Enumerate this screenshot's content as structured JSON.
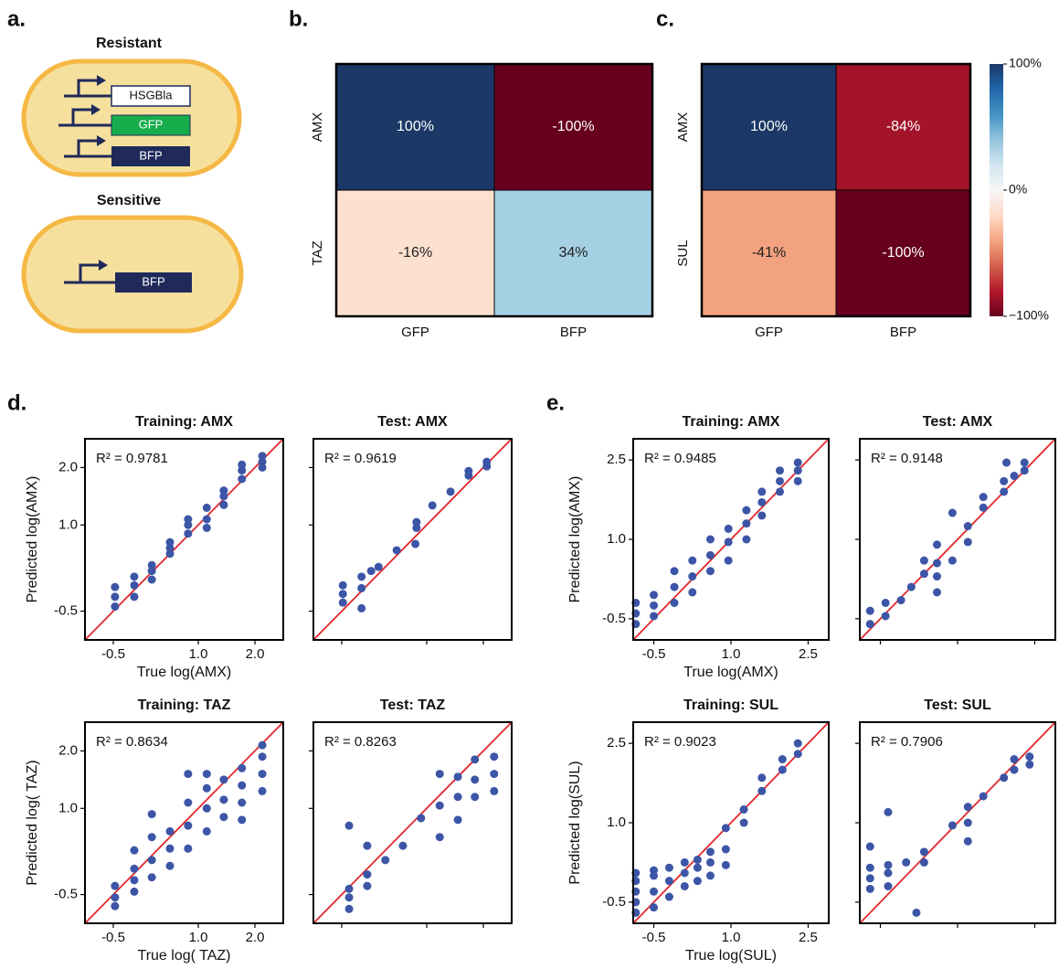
{
  "panel_labels": [
    "a.",
    "b.",
    "c.",
    "d.",
    "e."
  ],
  "diagram": {
    "groups": [
      {
        "label": "Resistant",
        "genes": [
          "HSGBla",
          "GFP",
          "BFP"
        ]
      },
      {
        "label": "Sensitive",
        "genes": [
          "BFP"
        ]
      }
    ]
  },
  "chart_data": [
    {
      "type": "heatmap",
      "rows": [
        "AMX",
        "TAZ"
      ],
      "columns": [
        "GFP",
        "BFP"
      ],
      "values": [
        [
          100,
          -100
        ],
        [
          -16,
          34
        ]
      ],
      "value_labels": [
        [
          "100%",
          "-100%"
        ],
        [
          "-16%",
          "34%"
        ]
      ],
      "colormap": "RdBu",
      "zlim": [
        -100,
        100
      ]
    },
    {
      "type": "heatmap",
      "rows": [
        "AMX",
        "SUL"
      ],
      "columns": [
        "GFP",
        "BFP"
      ],
      "values": [
        [
          100,
          -84
        ],
        [
          -41,
          -100
        ]
      ],
      "value_labels": [
        [
          "100%",
          "-84%"
        ],
        [
          "-41%",
          "-100%"
        ]
      ],
      "colormap": "RdBu",
      "zlim": [
        -100,
        100
      ],
      "colorbar_ticks": [
        {
          "value": 100,
          "label": "100%"
        },
        {
          "value": 0,
          "label": "0%"
        },
        {
          "value": -100,
          "label": "−100%"
        }
      ]
    },
    {
      "type": "scatter",
      "title": "Training: AMX",
      "annotation": "R² = 0.9781",
      "x_label": "True log(AMX)",
      "y_label": "Predicted log(AMX)",
      "x": [
        -0.47,
        -0.47,
        -0.47,
        -0.13,
        -0.13,
        -0.13,
        0.18,
        0.18,
        0.18,
        0.5,
        0.5,
        0.5,
        0.82,
        0.82,
        0.82,
        1.15,
        1.15,
        1.15,
        1.45,
        1.45,
        1.45,
        1.77,
        1.77,
        1.77,
        2.13,
        2.13,
        2.13
      ],
      "y": [
        -0.42,
        -0.25,
        -0.08,
        -0.25,
        -0.05,
        0.1,
        0.05,
        0.2,
        0.3,
        0.5,
        0.6,
        0.7,
        0.85,
        1.0,
        1.1,
        0.95,
        1.1,
        1.3,
        1.35,
        1.5,
        1.6,
        1.8,
        1.95,
        2.05,
        2.0,
        2.1,
        2.2
      ],
      "color": "#3c55a6",
      "line_color": "#e3262a",
      "xlim": [
        -1,
        2.5
      ],
      "ylim": [
        -1,
        2.5
      ],
      "xticks": [
        -0.5,
        {
          "value": 1,
          "label": "1.0"
        },
        {
          "value": 2,
          "label": "2.0"
        }
      ],
      "yticks": [
        -0.5,
        {
          "value": 1,
          "label": "1.0"
        },
        {
          "value": 2,
          "label": "2.0"
        }
      ]
    },
    {
      "type": "scatter",
      "title": "Test: AMX",
      "annotation": "R² = 0.9619",
      "x": [
        -0.48,
        -0.48,
        -0.48,
        -0.15,
        -0.15,
        -0.15,
        0.02,
        0.15,
        0.47,
        0.8,
        0.82,
        0.82,
        1.1,
        1.42,
        1.74,
        1.74,
        2.06,
        2.06
      ],
      "y": [
        -0.35,
        -0.2,
        -0.05,
        -0.45,
        -0.1,
        0.1,
        0.2,
        0.27,
        0.56,
        0.67,
        0.95,
        1.05,
        1.34,
        1.58,
        1.86,
        1.94,
        2.02,
        2.1
      ],
      "color": "#3c55a6",
      "line_color": "#e3262a",
      "xlim": [
        -1,
        2.5
      ],
      "ylim": [
        -1,
        2.5
      ],
      "xticks": [
        -0.5,
        1,
        2
      ],
      "yticks": [
        -0.5,
        1,
        2
      ],
      "tick_labels": false
    },
    {
      "type": "scatter",
      "title": "Training: TAZ",
      "annotation": "R² = 0.8634",
      "x_label": "True log( TAZ)",
      "y_label": "Predicted log( TAZ)",
      "x": [
        -0.47,
        -0.47,
        -0.47,
        -0.13,
        -0.13,
        -0.13,
        -0.13,
        0.18,
        0.18,
        0.18,
        0.18,
        0.5,
        0.5,
        0.5,
        0.82,
        0.82,
        0.82,
        0.82,
        1.15,
        1.15,
        1.15,
        1.15,
        1.45,
        1.45,
        1.45,
        1.77,
        1.77,
        1.77,
        1.77,
        2.13,
        2.13,
        2.13,
        2.13
      ],
      "y": [
        -0.7,
        -0.55,
        -0.35,
        -0.45,
        -0.25,
        -0.05,
        0.27,
        -0.2,
        0.1,
        0.5,
        0.9,
        0.0,
        0.3,
        0.6,
        0.3,
        0.7,
        1.1,
        1.6,
        0.6,
        1.0,
        1.35,
        1.6,
        0.85,
        1.15,
        1.5,
        0.8,
        1.1,
        1.4,
        1.7,
        1.3,
        1.6,
        1.9,
        2.1
      ],
      "color": "#3c55a6",
      "line_color": "#e3262a",
      "xlim": [
        -1,
        2.5
      ],
      "ylim": [
        -1,
        2.5
      ],
      "xticks": [
        -0.5,
        {
          "value": 1,
          "label": "1.0"
        },
        {
          "value": 2,
          "label": "2.0"
        }
      ],
      "yticks": [
        -0.5,
        {
          "value": 1,
          "label": "1.0"
        },
        {
          "value": 2,
          "label": "2.0"
        }
      ]
    },
    {
      "type": "scatter",
      "title": "Test: TAZ",
      "annotation": "R² = 0.8263",
      "x": [
        -0.37,
        -0.37,
        -0.37,
        -0.37,
        -0.05,
        -0.05,
        -0.05,
        0.27,
        0.58,
        0.9,
        1.23,
        1.23,
        1.23,
        1.55,
        1.55,
        1.55,
        1.85,
        1.85,
        1.85,
        2.19,
        2.19,
        2.19
      ],
      "y": [
        -0.75,
        -0.55,
        -0.4,
        0.7,
        -0.35,
        -0.15,
        0.35,
        0.1,
        0.35,
        0.83,
        0.5,
        1.05,
        1.6,
        0.8,
        1.2,
        1.55,
        1.2,
        1.5,
        1.85,
        1.3,
        1.6,
        1.9
      ],
      "color": "#3c55a6",
      "line_color": "#e3262a",
      "xlim": [
        -1,
        2.5
      ],
      "ylim": [
        -1,
        2.5
      ],
      "xticks": [
        -0.5,
        1,
        2
      ],
      "yticks": [
        -0.5,
        1,
        2
      ],
      "tick_labels": false
    },
    {
      "type": "scatter",
      "title": "Training: AMX",
      "annotation": "R² = 0.9485",
      "x_label": "True log(AMX)",
      "y_label": "Predicted log(AMX)",
      "x": [
        -0.85,
        -0.85,
        -0.85,
        -0.5,
        -0.5,
        -0.5,
        -0.1,
        -0.1,
        -0.1,
        0.25,
        0.25,
        0.25,
        0.6,
        0.6,
        0.6,
        0.95,
        0.95,
        0.95,
        1.3,
        1.3,
        1.3,
        1.6,
        1.6,
        1.6,
        1.95,
        1.95,
        1.95,
        2.3,
        2.3,
        2.3
      ],
      "y": [
        -0.6,
        -0.4,
        -0.2,
        -0.45,
        -0.25,
        -0.05,
        -0.2,
        0.1,
        0.4,
        0.0,
        0.3,
        0.6,
        0.4,
        0.7,
        1.0,
        0.6,
        0.95,
        1.2,
        1.0,
        1.3,
        1.55,
        1.45,
        1.7,
        1.9,
        1.9,
        2.1,
        2.3,
        2.1,
        2.3,
        2.45
      ],
      "color": "#3c55a6",
      "line_color": "#e3262a",
      "xlim": [
        -0.9,
        2.9
      ],
      "ylim": [
        -0.9,
        2.9
      ],
      "xticks": [
        -0.5,
        {
          "value": 1,
          "label": "1.0"
        },
        2.5
      ],
      "yticks": [
        -0.5,
        {
          "value": 1,
          "label": "1.0"
        },
        2.5
      ]
    },
    {
      "type": "scatter",
      "title": "Test: AMX",
      "annotation": "R² = 0.9148",
      "x": [
        -0.7,
        -0.7,
        -0.4,
        -0.4,
        -0.1,
        0.1,
        0.35,
        0.35,
        0.6,
        0.6,
        0.6,
        0.6,
        0.9,
        0.9,
        1.2,
        1.2,
        1.5,
        1.5,
        1.9,
        1.9,
        2.1,
        1.95,
        2.3,
        2.3
      ],
      "y": [
        -0.6,
        -0.35,
        -0.45,
        -0.2,
        -0.15,
        0.1,
        0.35,
        0.6,
        0.0,
        0.3,
        0.55,
        0.9,
        0.6,
        1.5,
        0.95,
        1.25,
        1.6,
        1.8,
        1.9,
        2.1,
        2.2,
        2.45,
        2.3,
        2.45
      ],
      "color": "#3c55a6",
      "line_color": "#e3262a",
      "xlim": [
        -0.9,
        2.9
      ],
      "ylim": [
        -0.9,
        2.9
      ],
      "xticks": [
        -0.5,
        1,
        2.5
      ],
      "yticks": [
        -0.5,
        1,
        2.5
      ],
      "tick_labels": false
    },
    {
      "type": "scatter",
      "title": "Training: SUL",
      "annotation": "R² = 0.9023",
      "x_label": "True log(SUL)",
      "y_label": "Predicted log(SUL)",
      "x": [
        -0.85,
        -0.85,
        -0.85,
        -0.85,
        -0.85,
        -0.5,
        -0.5,
        -0.5,
        -0.5,
        -0.2,
        -0.2,
        -0.2,
        0.1,
        0.1,
        0.1,
        0.35,
        0.35,
        0.35,
        0.6,
        0.6,
        0.6,
        0.9,
        0.9,
        0.9,
        1.25,
        1.25,
        1.6,
        1.6,
        2.0,
        2.0,
        2.3,
        2.3
      ],
      "y": [
        -0.7,
        -0.5,
        -0.3,
        -0.1,
        0.05,
        -0.6,
        -0.3,
        0.0,
        0.1,
        -0.4,
        -0.1,
        0.15,
        -0.2,
        0.05,
        0.25,
        -0.1,
        0.15,
        0.3,
        0.0,
        0.25,
        0.45,
        0.2,
        0.5,
        0.9,
        1.0,
        1.25,
        1.6,
        1.85,
        2.0,
        2.2,
        2.3,
        2.5
      ],
      "color": "#3c55a6",
      "line_color": "#e3262a",
      "xlim": [
        -0.9,
        2.9
      ],
      "ylim": [
        -0.9,
        2.9
      ],
      "xticks": [
        -0.5,
        {
          "value": 1,
          "label": "1.0"
        },
        2.5
      ],
      "yticks": [
        -0.5,
        {
          "value": 1,
          "label": "1.0"
        },
        2.5
      ]
    },
    {
      "type": "scatter",
      "title": "Test: SUL",
      "annotation": "R² = 0.7906",
      "x": [
        -0.7,
        -0.7,
        -0.7,
        -0.7,
        -0.35,
        -0.35,
        -0.35,
        -0.35,
        0.0,
        0.2,
        0.35,
        0.35,
        0.9,
        1.2,
        1.2,
        1.2,
        1.5,
        1.9,
        2.1,
        2.1,
        2.4,
        2.4
      ],
      "y": [
        -0.25,
        -0.05,
        0.15,
        0.55,
        -0.2,
        0.05,
        0.2,
        1.2,
        0.25,
        -0.7,
        0.25,
        0.45,
        0.95,
        0.65,
        1.0,
        1.3,
        1.5,
        1.85,
        2.0,
        2.2,
        2.1,
        2.25
      ],
      "color": "#3c55a6",
      "line_color": "#e3262a",
      "xlim": [
        -0.9,
        2.9
      ],
      "ylim": [
        -0.9,
        2.9
      ],
      "xticks": [
        -0.5,
        1,
        2.5
      ],
      "yticks": [
        -0.5,
        1,
        2.5
      ],
      "tick_labels": false
    }
  ]
}
